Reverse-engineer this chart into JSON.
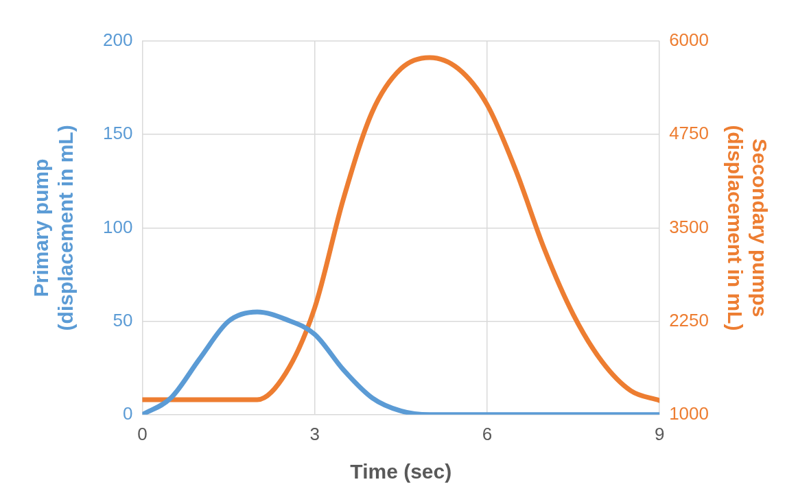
{
  "chart_data": {
    "type": "line",
    "xlabel": "Time (sec)",
    "ylabel": "Primary pump\n(displacement in mL)",
    "y2label": "Secondary pumps\n(displacement in mL)",
    "xlim": [
      0,
      9
    ],
    "xticks": [
      0,
      3,
      6,
      9
    ],
    "ylim": [
      0,
      200
    ],
    "yticks": [
      0,
      50,
      100,
      150,
      200
    ],
    "y2lim": [
      1000,
      6000
    ],
    "y2ticks": [
      1000,
      2250,
      3500,
      4750,
      6000
    ],
    "grid": true,
    "legend": false,
    "marker": "none",
    "line_style": "solid",
    "series": [
      {
        "color": "#5b9bd5",
        "x": [
          0,
          0.5,
          1,
          1.5,
          2,
          2.5,
          3,
          3.5,
          4,
          4.5,
          5,
          6,
          7,
          8,
          9
        ],
        "values": [
          0,
          9,
          30,
          50,
          55,
          51,
          43,
          24,
          9,
          2,
          0,
          0,
          0,
          0,
          0
        ]
      },
      {
        "axis": "y2",
        "color": "#ed7d31",
        "x": [
          0,
          1,
          2,
          2.5,
          3,
          3.5,
          4,
          4.5,
          5,
          5.5,
          6,
          6.5,
          7,
          7.5,
          8,
          8.5,
          9
        ],
        "values": [
          1200,
          1200,
          1200,
          1560,
          2430,
          3890,
          5050,
          5630,
          5780,
          5630,
          5150,
          4270,
          3210,
          2340,
          1710,
          1320,
          1190
        ]
      }
    ]
  }
}
